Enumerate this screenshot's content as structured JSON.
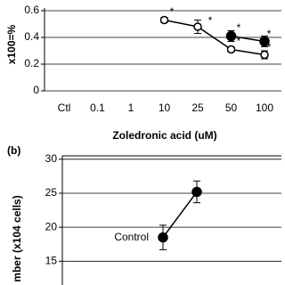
{
  "chart_data": [
    {
      "type": "line",
      "ylabel": "x100=%",
      "xlabel": "Zoledronic acid (uM)",
      "categories": [
        "Ctl",
        "0.1",
        "1",
        "10",
        "25",
        "50",
        "100"
      ],
      "ylim": [
        0,
        0.62
      ],
      "yticks": [
        0,
        0.2,
        0.4,
        0.6
      ],
      "grid": true,
      "series": [
        {
          "marker": "open",
          "color": "#000000",
          "values": [
            null,
            null,
            null,
            0.53,
            0.48,
            0.31,
            0.27
          ],
          "errors": [
            null,
            null,
            null,
            0.02,
            0.05,
            0.02,
            0.03
          ]
        },
        {
          "marker": "filled",
          "color": "#000000",
          "values": [
            null,
            null,
            null,
            null,
            null,
            0.41,
            0.37
          ],
          "errors": [
            null,
            null,
            null,
            null,
            null,
            0.04,
            0.04
          ]
        }
      ],
      "annotations": [
        "*",
        "*",
        "*",
        "*",
        "*",
        "*"
      ]
    },
    {
      "type": "line",
      "panel": "(b)",
      "ylabel": "mber (x104 cells)",
      "categories": [
        null,
        null,
        null,
        null,
        null,
        null,
        null
      ],
      "ylim": [
        11.5,
        30.5
      ],
      "yticks": [
        15,
        20,
        25,
        30
      ],
      "grid": true,
      "series": [
        {
          "name": "Control",
          "marker": "filled",
          "color": "#000000",
          "values": [
            null,
            null,
            null,
            null,
            18.5,
            25.2,
            null
          ],
          "errors": [
            null,
            null,
            null,
            null,
            1.8,
            1.6,
            null
          ]
        }
      ]
    }
  ]
}
